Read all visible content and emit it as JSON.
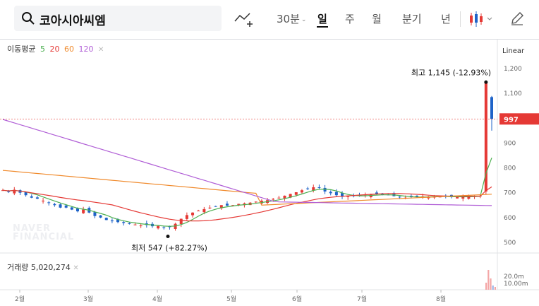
{
  "search": {
    "value": "코아시아씨엠"
  },
  "toolbar": {
    "timeframes": [
      "30분",
      "일",
      "주",
      "월",
      "분기",
      "년"
    ],
    "active_timeframe": "일",
    "scale_mode": "Linear"
  },
  "legend": {
    "label": "이동평균",
    "periods": [
      "5",
      "20",
      "60",
      "120"
    ],
    "colors": {
      "ma5": "#4caf50",
      "ma20": "#e53935",
      "ma60": "#f08a2c",
      "ma120": "#b05ed6"
    }
  },
  "volume": {
    "label": "거래량",
    "value": "5,020,274",
    "ticks": [
      "20.0m",
      "10.00m"
    ]
  },
  "watermark": [
    "NAVER",
    "FINANCIAL"
  ],
  "chart_data": {
    "type": "candlestick",
    "title": "",
    "x_months": [
      "2월",
      "3월",
      "4월",
      "5월",
      "6월",
      "7월",
      "8월"
    ],
    "y_ticks": [
      500,
      600,
      700,
      800,
      900,
      "1,000",
      "1,100",
      "1,200"
    ],
    "ylim": [
      470,
      1250
    ],
    "current_price": 997,
    "high_annotation": {
      "label": "최고",
      "value": "1,145",
      "change": "(-12.93%)"
    },
    "low_annotation": {
      "label": "최저",
      "value": "547",
      "change": "(+82.27%)"
    },
    "colors": {
      "up": "#e53935",
      "down": "#1e63c8"
    },
    "closes_approx": [
      710,
      705,
      712,
      700,
      690,
      680,
      676,
      668,
      660,
      650,
      640,
      640,
      632,
      625,
      632,
      620,
      606,
      600,
      590,
      585,
      582,
      578,
      575,
      572,
      568,
      570,
      565,
      566,
      560,
      563,
      575,
      595,
      610,
      620,
      628,
      634,
      640,
      645,
      650,
      648,
      650,
      655,
      657,
      660,
      664,
      668,
      670,
      675,
      680,
      688,
      695,
      702,
      710,
      716,
      722,
      720,
      705,
      698,
      690,
      684,
      688,
      686,
      690,
      690,
      692,
      694,
      692,
      690,
      686,
      682,
      680,
      682,
      684,
      685,
      685,
      686,
      684,
      684,
      682,
      683,
      684,
      686,
      686,
      688,
      1145,
      997
    ]
  }
}
